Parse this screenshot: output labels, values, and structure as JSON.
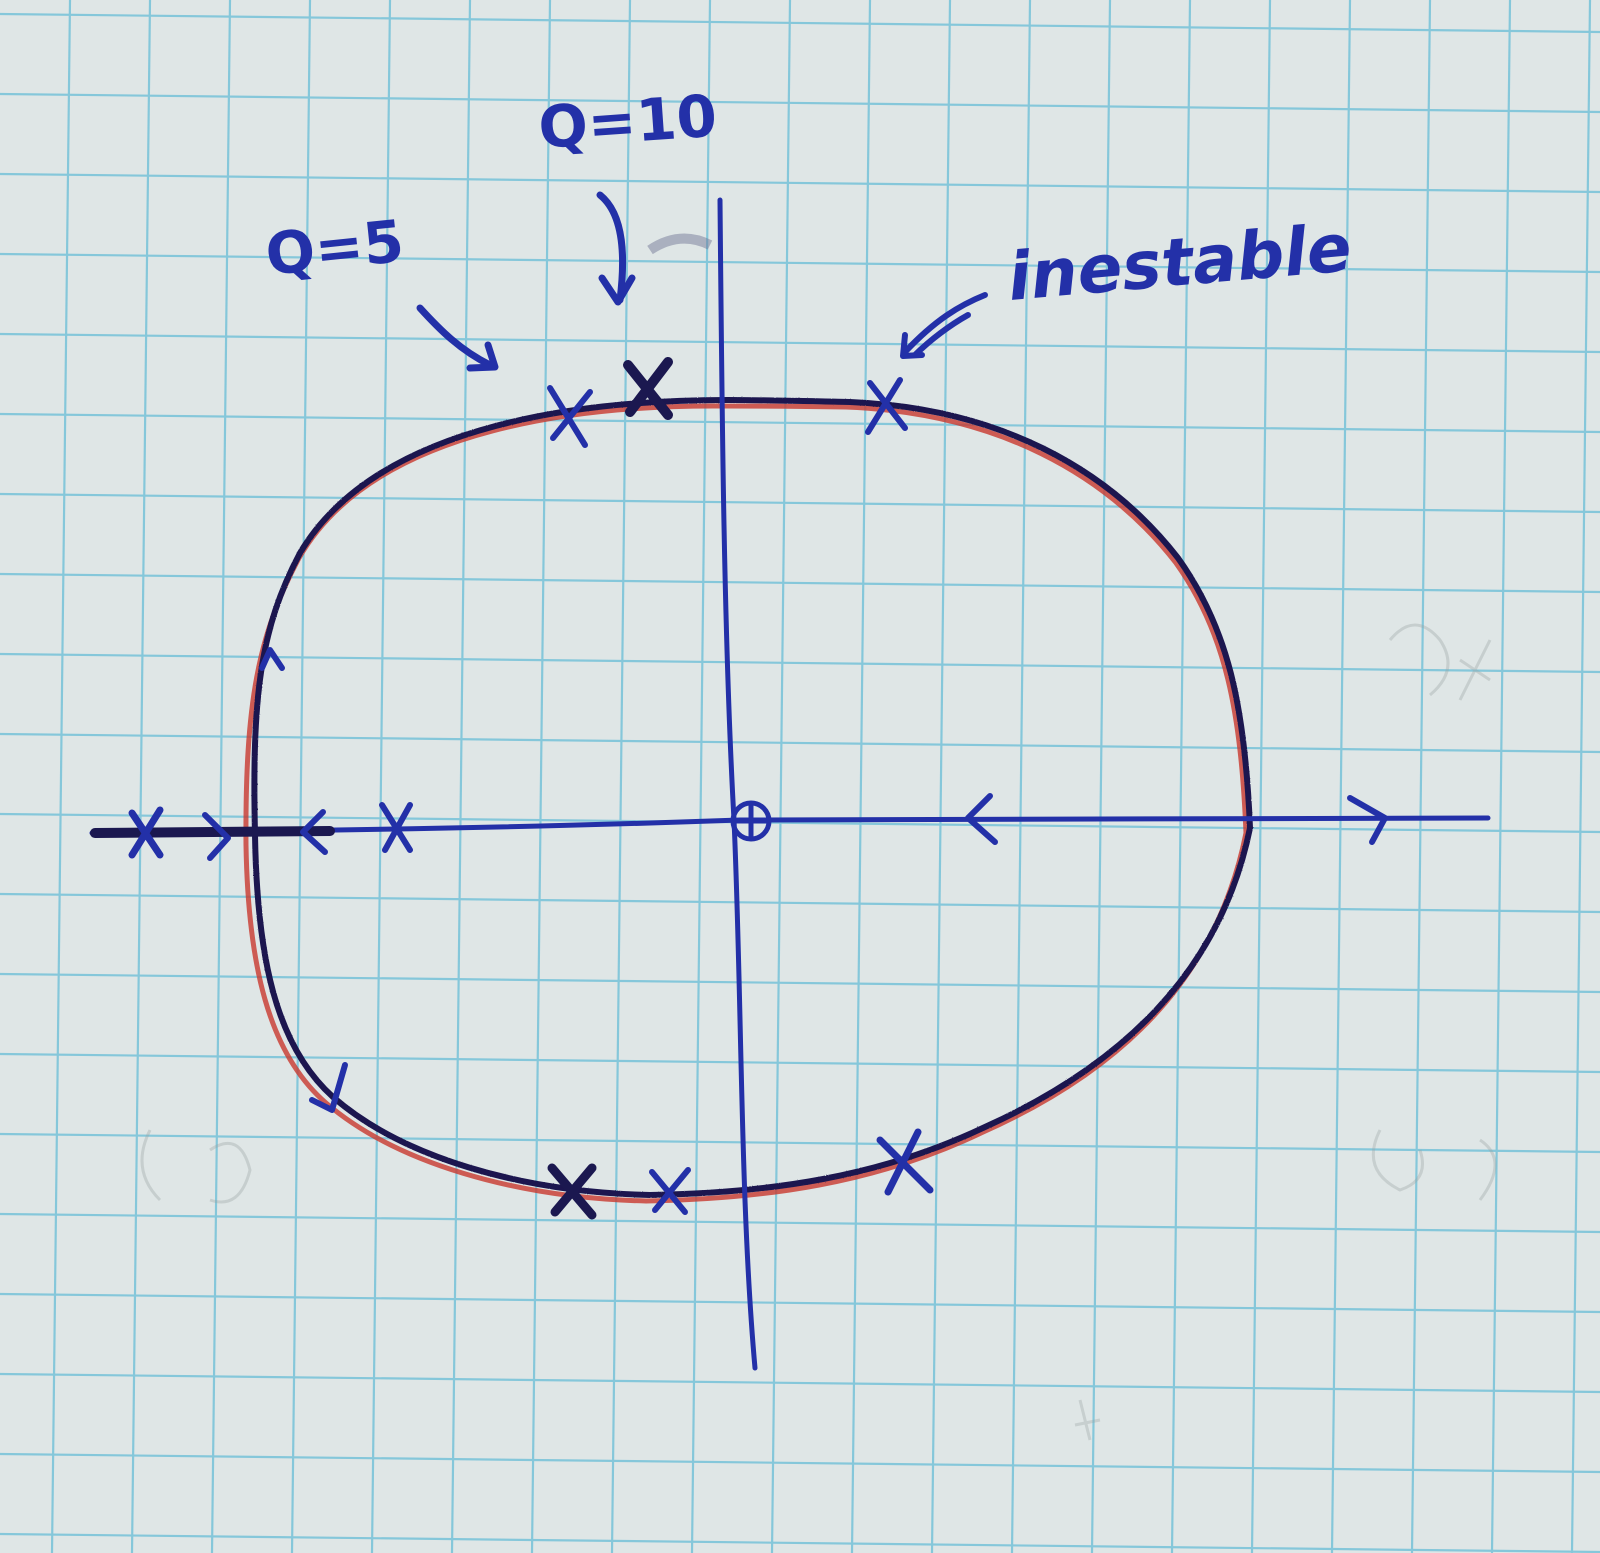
{
  "labels": {
    "q10": "Q=10",
    "q5": "Q=5",
    "unstable": "inestable"
  },
  "colors": {
    "paper": "#dfe6e6",
    "grid": "#7cc4d9",
    "ink_blue": "#2330a8",
    "ink_dark": "#1b1850",
    "ink_red": "#c8382e",
    "faint": "#9aa3a3"
  },
  "icons": {
    "pole": "cross-icon",
    "zero": "circle-plus-icon",
    "direction": "arrowhead-icon"
  }
}
